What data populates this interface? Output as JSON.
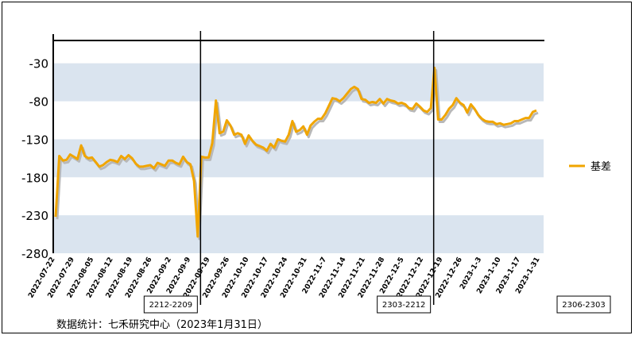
{
  "chart_data": {
    "type": "line",
    "title": "",
    "xlabel": "",
    "ylabel": "",
    "ylim": [
      -280,
      0
    ],
    "yticks": [
      -30,
      -80,
      -130,
      -180,
      -230,
      -280
    ],
    "band_color": "#dae4ef",
    "line_color": "#f0a500",
    "shadow_color": "#b8b8b8",
    "legend_position": "right",
    "x_tick_labels": [
      "2022-07-22",
      "2022-07-29",
      "2022-08-05",
      "2022-08-12",
      "2022-08-19",
      "2022-08-26",
      "2022-09-2",
      "2022-09-9",
      "2022-09-19",
      "2022-09-26",
      "2022-10-10",
      "2022-10-17",
      "2022-10-24",
      "2022-10-31",
      "2022-11-7",
      "2022-11-14",
      "2022-11-21",
      "2022-11-28",
      "2022-12-5",
      "2022-12-12",
      "2022-12-19",
      "2022-12-26",
      "2023-1-3",
      "2023-1-10",
      "2023-1-17",
      "2023-1-31"
    ],
    "series": [
      {
        "name": "基差",
        "values": [
          -232,
          -152,
          -158,
          -157,
          -150,
          -153,
          -156,
          -138,
          -152,
          -155,
          -154,
          -160,
          -166,
          -164,
          -160,
          -157,
          -158,
          -160,
          -152,
          -156,
          -151,
          -155,
          -162,
          -166,
          -166,
          -165,
          -164,
          -168,
          -161,
          -163,
          -165,
          -158,
          -158,
          -161,
          -163,
          -153,
          -160,
          -163,
          -185,
          -258,
          -153,
          -154,
          -154,
          -135,
          -79,
          -122,
          -120,
          -105,
          -112,
          -124,
          -122,
          -124,
          -136,
          -125,
          -132,
          -137,
          -139,
          -141,
          -145,
          -136,
          -141,
          -130,
          -132,
          -133,
          -124,
          -106,
          -120,
          -118,
          -113,
          -124,
          -112,
          -107,
          -103,
          -103,
          -96,
          -86,
          -76,
          -77,
          -80,
          -76,
          -70,
          -64,
          -61,
          -64,
          -77,
          -78,
          -82,
          -81,
          -82,
          -77,
          -83,
          -77,
          -79,
          -80,
          -83,
          -82,
          -84,
          -89,
          -90,
          -83,
          -87,
          -92,
          -94,
          -89,
          -36,
          -104,
          -104,
          -98,
          -90,
          -85,
          -76,
          -82,
          -85,
          -95,
          -84,
          -90,
          -98,
          -103,
          -106,
          -107,
          -107,
          -110,
          -109,
          -111,
          -110,
          -109,
          -106,
          -106,
          -104,
          -102,
          -102,
          -94,
          -92
        ]
      }
    ],
    "markers": [
      {
        "label": "2212-2209",
        "index": 40
      },
      {
        "label": "2303-2212",
        "index": 104
      },
      {
        "label": "2306-2303",
        "index": null
      }
    ]
  },
  "legend": {
    "label": "基差"
  },
  "footer": {
    "source": "数据统计：七禾研究中心（2023年1月31日）"
  }
}
